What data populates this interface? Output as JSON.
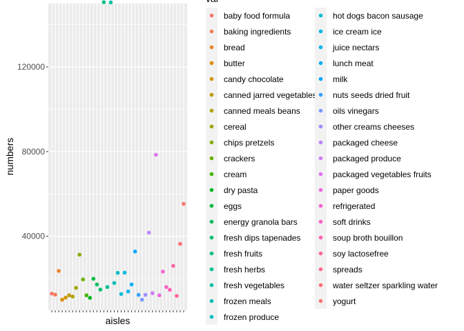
{
  "chart_data": {
    "type": "scatter",
    "title": "",
    "xlabel": "aisles",
    "ylabel": "numbers",
    "legend_title": "var",
    "legend_position": "right",
    "grid": true,
    "ylim": [
      5000,
      150000
    ],
    "yticks": [
      40000,
      80000,
      120000
    ],
    "ytick_labels": [
      "40000",
      "80000",
      "120000"
    ],
    "categories": [
      "baby food formula",
      "baking ingredients",
      "bread",
      "butter",
      "candy chocolate",
      "canned jarred vegetables",
      "canned meals beans",
      "cereal",
      "chips pretzels",
      "crackers",
      "cream",
      "dry pasta",
      "eggs",
      "energy granola bars",
      "fresh dips tapenades",
      "fresh fruits",
      "fresh herbs",
      "fresh vegetables",
      "frozen meals",
      "frozen produce",
      "hot dogs bacon sausage",
      "ice cream ice",
      "juice nectars",
      "lunch meat",
      "milk",
      "nuts seeds dried fruit",
      "oils vinegars",
      "other creams cheeses",
      "packaged cheese",
      "packaged produce",
      "packaged vegetables fruits",
      "paper goods",
      "refrigerated",
      "soft drinks",
      "soup broth bouillon",
      "soy lactosefree",
      "spreads",
      "water seltzer sparkling water",
      "yogurt"
    ],
    "values": [
      12900,
      12400,
      23600,
      10000,
      11000,
      12100,
      11500,
      15600,
      31300,
      19600,
      12100,
      10900,
      19900,
      17200,
      14800,
      150600,
      16000,
      150500,
      17900,
      22700,
      12700,
      22800,
      13900,
      17200,
      32800,
      12300,
      10000,
      12300,
      41700,
      13100,
      78500,
      12100,
      23300,
      16000,
      14700,
      26000,
      11800,
      36400,
      55300
    ],
    "colors": [
      "#F8766D",
      "#F27D52",
      "#E8852A",
      "#DC8E00",
      "#CF9400",
      "#C09B00",
      "#AFA100",
      "#9CA700",
      "#86AC00",
      "#6BB100",
      "#45B500",
      "#00B81F",
      "#00BA42",
      "#00BC5B",
      "#00BE70",
      "#00BF82",
      "#00C094",
      "#00C0A5",
      "#00BFB5",
      "#00BEC4",
      "#00BCD3",
      "#00B9E0",
      "#00B5EC",
      "#00B0F6",
      "#00A9FF",
      "#35A2FF",
      "#7799FF",
      "#9E8FFF",
      "#BA85FF",
      "#CF7BF9",
      "#E071EE",
      "#EC69E2",
      "#F564D4",
      "#FB61C4",
      "#FF61B3",
      "#FF64A1",
      "#FF698E",
      "#FE6E7A",
      "#F8766D"
    ]
  }
}
